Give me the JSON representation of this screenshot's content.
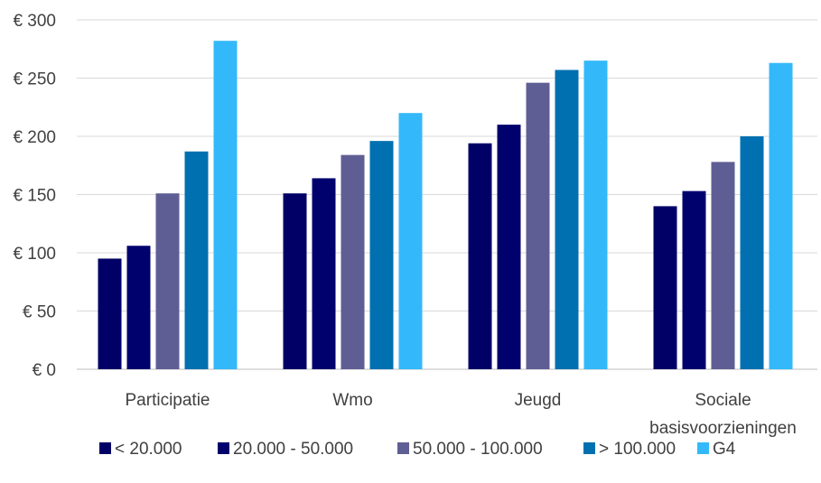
{
  "chart_data": {
    "type": "bar",
    "title": "",
    "xlabel": "",
    "ylabel": "",
    "ylim": [
      0,
      300
    ],
    "yticks": [
      0,
      50,
      100,
      150,
      200,
      250,
      300
    ],
    "ytick_labels": [
      "€ 0",
      "€ 50",
      "€ 100",
      "€ 150",
      "€ 200",
      "€ 250",
      "€ 300"
    ],
    "grid": true,
    "legend_position": "bottom",
    "categories": [
      [
        "Participatie"
      ],
      [
        "Wmo"
      ],
      [
        "Jeugd"
      ],
      [
        "Sociale",
        "basisvoorzieningen"
      ]
    ],
    "series": [
      {
        "name": "< 20.000",
        "color": "#000066",
        "values": [
          95,
          151,
          194,
          140
        ]
      },
      {
        "name": "20.000 - 50.000",
        "color": "#01016E",
        "values": [
          106,
          164,
          210,
          153
        ]
      },
      {
        "name": "50.000 - 100.000",
        "color": "#5F5E94",
        "values": [
          151,
          184,
          246,
          178
        ]
      },
      {
        "name": "> 100.000",
        "color": "#0070B0",
        "values": [
          187,
          196,
          257,
          200
        ]
      },
      {
        "name": "G4",
        "color": "#33B9FA",
        "values": [
          282,
          220,
          265,
          263
        ]
      }
    ]
  }
}
